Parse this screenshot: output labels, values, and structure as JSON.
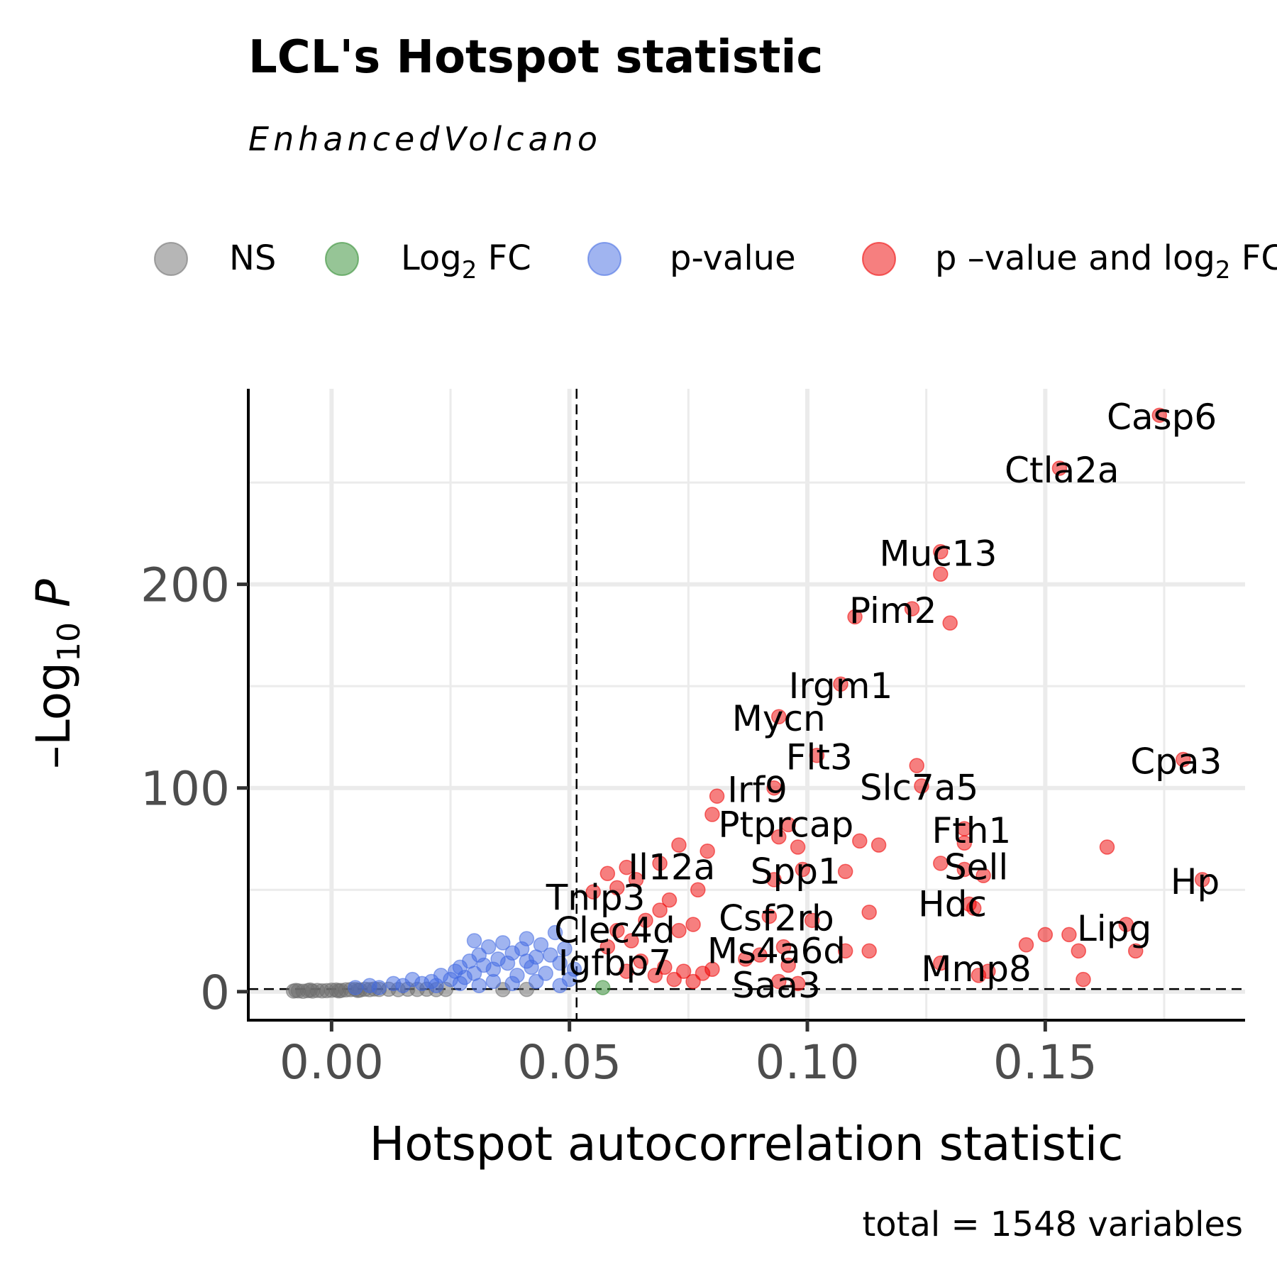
{
  "chart_data": {
    "type": "scatter",
    "title": "LCL's Hotspot statistic",
    "subtitle": "EnhancedVolcano",
    "xlabel": "Hotspot autocorrelation statistic",
    "ylabel_main": "Log",
    "ylabel_sub": "10",
    "ylabel_p": "P",
    "caption": "total = 1548 variables",
    "xlim": [
      -0.0175,
      0.192
    ],
    "ylim": [
      -14,
      296
    ],
    "xticks": [
      0.0,
      0.05,
      0.1,
      0.15
    ],
    "xtick_labels": [
      "0.00",
      "0.05",
      "0.10",
      "0.15"
    ],
    "yticks": [
      0,
      100,
      200
    ],
    "ytick_labels": [
      "0",
      "100",
      "200"
    ],
    "grid": true,
    "cutoff_x": 0.0515,
    "cutoff_y": 1.3,
    "legend_position": "top",
    "legend": [
      {
        "key": "NS",
        "label": "NS",
        "color": "#6e6e6e"
      },
      {
        "key": "FC",
        "label": "Log",
        "label_sub": "2",
        "label_tail": "FC",
        "color": "#2e8b2e"
      },
      {
        "key": "P",
        "label": "p-value",
        "color": "#4169e1"
      },
      {
        "key": "PFC",
        "label": "p –value and log",
        "label_sub": "2",
        "label_tail": "FC",
        "color": "#ee0000"
      }
    ],
    "colors": {
      "NS": "#6e6e6e",
      "FC": "#2e8b2e",
      "P": "#4169e1",
      "PFC": "#ee0000"
    },
    "series": [
      {
        "key": "NS",
        "points": [
          [
            -0.008,
            0.3
          ],
          [
            -0.007,
            0.4
          ],
          [
            -0.006,
            0.2
          ],
          [
            -0.005,
            0.5
          ],
          [
            -0.004,
            0.3
          ],
          [
            -0.003,
            0.6
          ],
          [
            -0.002,
            0.4
          ],
          [
            -0.001,
            0.5
          ],
          [
            0.0,
            0.7
          ],
          [
            0.001,
            0.8
          ],
          [
            0.002,
            0.6
          ],
          [
            0.003,
            0.9
          ],
          [
            0.004,
            1.0
          ],
          [
            0.005,
            1.1
          ],
          [
            0.006,
            0.8
          ],
          [
            0.007,
            1.2
          ],
          [
            0.008,
            1.0
          ],
          [
            0.009,
            1.3
          ],
          [
            0.01,
            1.1
          ],
          [
            0.012,
            1.2
          ],
          [
            0.014,
            1.0
          ],
          [
            0.016,
            1.2
          ],
          [
            0.018,
            1.1
          ],
          [
            0.02,
            1.2
          ],
          [
            0.022,
            1.0
          ],
          [
            0.024,
            1.1
          ],
          [
            0.036,
            1.0
          ],
          [
            0.041,
            1.1
          ],
          [
            -0.0075,
            0.6
          ],
          [
            -0.0045,
            0.8
          ],
          [
            0.0015,
            0.4
          ],
          [
            0.0055,
            0.6
          ]
        ]
      },
      {
        "key": "FC",
        "points": [
          [
            0.057,
            2.0
          ]
        ]
      },
      {
        "key": "P",
        "points": [
          [
            0.005,
            2
          ],
          [
            0.008,
            3
          ],
          [
            0.01,
            2
          ],
          [
            0.013,
            4
          ],
          [
            0.015,
            3
          ],
          [
            0.017,
            6
          ],
          [
            0.019,
            4
          ],
          [
            0.021,
            5
          ],
          [
            0.023,
            8
          ],
          [
            0.025,
            6
          ],
          [
            0.026,
            10
          ],
          [
            0.027,
            12
          ],
          [
            0.028,
            7
          ],
          [
            0.029,
            15
          ],
          [
            0.03,
            9
          ],
          [
            0.031,
            18
          ],
          [
            0.032,
            13
          ],
          [
            0.033,
            22
          ],
          [
            0.034,
            11
          ],
          [
            0.035,
            16
          ],
          [
            0.036,
            24
          ],
          [
            0.037,
            14
          ],
          [
            0.038,
            19
          ],
          [
            0.039,
            8
          ],
          [
            0.04,
            21
          ],
          [
            0.041,
            26
          ],
          [
            0.042,
            12
          ],
          [
            0.043,
            17
          ],
          [
            0.044,
            23
          ],
          [
            0.045,
            9
          ],
          [
            0.046,
            18
          ],
          [
            0.047,
            29
          ],
          [
            0.048,
            14
          ],
          [
            0.049,
            21
          ],
          [
            0.05,
            6
          ],
          [
            0.051,
            11
          ],
          [
            0.022,
            3
          ],
          [
            0.027,
            4
          ],
          [
            0.031,
            3
          ],
          [
            0.034,
            5
          ],
          [
            0.038,
            4
          ],
          [
            0.043,
            5
          ],
          [
            0.048,
            3
          ],
          [
            0.03,
            25
          ],
          [
            0.041,
            15
          ]
        ]
      },
      {
        "key": "PFC",
        "points": [
          [
            0.174,
            283
          ],
          [
            0.153,
            257
          ],
          [
            0.128,
            216
          ],
          [
            0.128,
            205
          ],
          [
            0.11,
            184
          ],
          [
            0.122,
            188
          ],
          [
            0.13,
            181
          ],
          [
            0.107,
            151
          ],
          [
            0.094,
            135
          ],
          [
            0.102,
            116
          ],
          [
            0.123,
            111
          ],
          [
            0.124,
            101
          ],
          [
            0.179,
            114
          ],
          [
            0.081,
            96
          ],
          [
            0.08,
            87
          ],
          [
            0.093,
            100
          ],
          [
            0.096,
            82
          ],
          [
            0.094,
            76
          ],
          [
            0.098,
            71
          ],
          [
            0.111,
            74
          ],
          [
            0.115,
            72
          ],
          [
            0.133,
            80
          ],
          [
            0.133,
            73
          ],
          [
            0.163,
            71
          ],
          [
            0.062,
            61
          ],
          [
            0.073,
            72
          ],
          [
            0.079,
            69
          ],
          [
            0.069,
            63
          ],
          [
            0.128,
            63
          ],
          [
            0.133,
            60
          ],
          [
            0.137,
            57
          ],
          [
            0.099,
            60
          ],
          [
            0.108,
            59
          ],
          [
            0.093,
            55
          ],
          [
            0.183,
            55
          ],
          [
            0.058,
            58
          ],
          [
            0.06,
            51
          ],
          [
            0.055,
            49
          ],
          [
            0.064,
            55
          ],
          [
            0.077,
            50
          ],
          [
            0.134,
            43
          ],
          [
            0.135,
            41
          ],
          [
            0.113,
            39
          ],
          [
            0.092,
            37
          ],
          [
            0.101,
            35
          ],
          [
            0.076,
            33
          ],
          [
            0.155,
            28
          ],
          [
            0.15,
            28
          ],
          [
            0.167,
            33
          ],
          [
            0.169,
            20
          ],
          [
            0.157,
            20
          ],
          [
            0.146,
            23
          ],
          [
            0.113,
            20
          ],
          [
            0.108,
            20
          ],
          [
            0.095,
            22
          ],
          [
            0.09,
            18
          ],
          [
            0.087,
            16
          ],
          [
            0.096,
            13
          ],
          [
            0.128,
            14
          ],
          [
            0.136,
            8
          ],
          [
            0.138,
            10
          ],
          [
            0.158,
            6
          ],
          [
            0.094,
            5
          ],
          [
            0.098,
            4
          ],
          [
            0.062,
            10
          ],
          [
            0.065,
            15
          ],
          [
            0.068,
            8
          ],
          [
            0.07,
            12
          ],
          [
            0.072,
            6
          ],
          [
            0.074,
            10
          ],
          [
            0.076,
            5
          ],
          [
            0.078,
            9
          ],
          [
            0.08,
            11
          ],
          [
            0.071,
            45
          ],
          [
            0.066,
            35
          ],
          [
            0.06,
            30
          ],
          [
            0.058,
            22
          ],
          [
            0.063,
            25
          ],
          [
            0.069,
            40
          ],
          [
            0.073,
            30
          ]
        ]
      }
    ],
    "labels": [
      {
        "text": "Casp6",
        "x": 0.1745,
        "y": 282
      },
      {
        "text": "Ctla2a",
        "x": 0.1535,
        "y": 256
      },
      {
        "text": "Muc13",
        "x": 0.1275,
        "y": 215
      },
      {
        "text": "Pim2",
        "x": 0.118,
        "y": 187
      },
      {
        "text": "Irgm1",
        "x": 0.107,
        "y": 150
      },
      {
        "text": "Mycn",
        "x": 0.094,
        "y": 134
      },
      {
        "text": "Flt3",
        "x": 0.1025,
        "y": 115
      },
      {
        "text": "Cpa3",
        "x": 0.1775,
        "y": 113
      },
      {
        "text": "Irf9",
        "x": 0.0895,
        "y": 99
      },
      {
        "text": "Slc7a5",
        "x": 0.1235,
        "y": 100
      },
      {
        "text": "Ptprcap",
        "x": 0.0955,
        "y": 82
      },
      {
        "text": "Fth1",
        "x": 0.1345,
        "y": 79
      },
      {
        "text": "Il12a",
        "x": 0.0715,
        "y": 61
      },
      {
        "text": "Sell",
        "x": 0.1355,
        "y": 61
      },
      {
        "text": "Spp1",
        "x": 0.0975,
        "y": 59
      },
      {
        "text": "Hp",
        "x": 0.1815,
        "y": 54
      },
      {
        "text": "Tnip3",
        "x": 0.0555,
        "y": 46
      },
      {
        "text": "Hdc",
        "x": 0.1305,
        "y": 43
      },
      {
        "text": "Csf2rb",
        "x": 0.0935,
        "y": 36
      },
      {
        "text": "Lipg",
        "x": 0.1645,
        "y": 31
      },
      {
        "text": "Clec4d",
        "x": 0.0595,
        "y": 30
      },
      {
        "text": "Ms4a6d",
        "x": 0.0935,
        "y": 20
      },
      {
        "text": "Igfbp7",
        "x": 0.0595,
        "y": 14
      },
      {
        "text": "Mmp8",
        "x": 0.1355,
        "y": 11
      },
      {
        "text": "Saa3",
        "x": 0.0935,
        "y": 3
      }
    ]
  }
}
